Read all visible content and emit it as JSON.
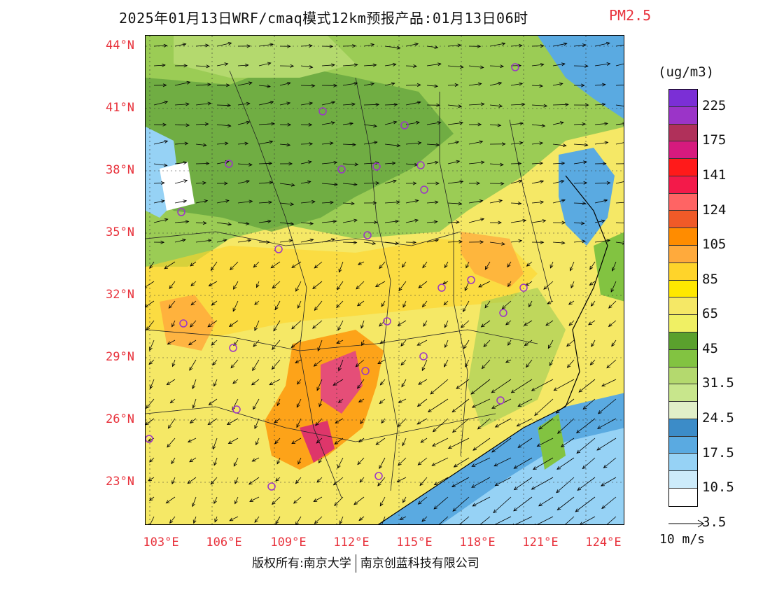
{
  "title": {
    "main": "2025年01月13日WRF/cmaq模式12km预报产品:01月13日06时",
    "pollutant": "PM2.5"
  },
  "map": {
    "lat_labels": [
      "44°N",
      "41°N",
      "38°N",
      "35°N",
      "32°N",
      "29°N",
      "26°N",
      "23°N"
    ],
    "lon_labels": [
      "103°E",
      "106°E",
      "109°E",
      "112°E",
      "115°E",
      "118°E",
      "121°E",
      "124°E"
    ],
    "colors": {
      "land_bg": "#f5e866",
      "sea": "#4f9bd0",
      "green_dark": "#62a33e",
      "green_mid": "#9bcc55",
      "hotspot": "#e0408a"
    }
  },
  "colorbar": {
    "unit": "(ug/m3)",
    "labels": [
      "225",
      "175",
      "141",
      "124",
      "105",
      "85",
      "65",
      "45",
      "31.5",
      "24.5",
      "17.5",
      "10.5",
      "3.5"
    ],
    "colors": [
      "#7b2fd6",
      "#9b34c8",
      "#b0305a",
      "#d61a7e",
      "#ff1a1a",
      "#f31a4a",
      "#ff6464",
      "#f05a28",
      "#ff8c00",
      "#ffaa3c",
      "#ffd42a",
      "#ffe800",
      "#f5e866",
      "#f0f064",
      "#5aa02d",
      "#82c341",
      "#b4d96e",
      "#c8e68c",
      "#e1efc8",
      "#3c8cc8",
      "#5aaae1",
      "#96d2f5",
      "#cdebfa",
      "#ffffff"
    ]
  },
  "wind_legend": {
    "label": "10 m/s"
  },
  "copyright": {
    "left": "版权所有:南京大学",
    "right": "南京创蓝科技有限公司"
  }
}
